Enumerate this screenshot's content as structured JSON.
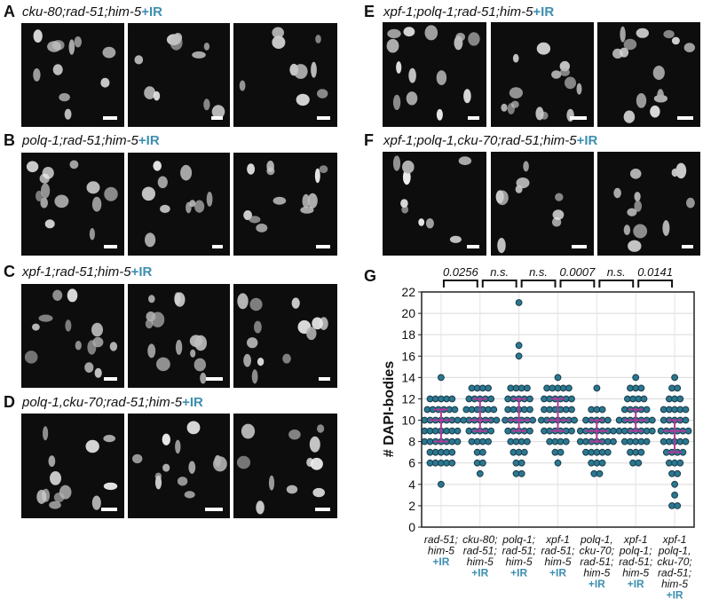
{
  "ir_label": "+IR",
  "panels": [
    {
      "letter": "A",
      "genotype": "cku-80;rad-51;him-5"
    },
    {
      "letter": "B",
      "genotype": "polq-1;rad-51;him-5"
    },
    {
      "letter": "C",
      "genotype": "xpf-1;rad-51;him-5"
    },
    {
      "letter": "D",
      "genotype": "polq-1,cku-70;rad-51;him-5"
    },
    {
      "letter": "E",
      "genotype": "xpf-1;polq-1;rad-51;him-5"
    },
    {
      "letter": "F",
      "genotype": "xpf-1;polq-1,cku-70;rad-51;him-5"
    }
  ],
  "colors": {
    "dot_fill": "#2a7890",
    "dot_stroke": "#1b3a4a",
    "errorbar": "#b0389a",
    "ir_text": "#3d8fb0",
    "micro_bg": "#0d0d0d"
  },
  "chart_data": {
    "panel_letter": "G",
    "type": "scatter",
    "ylabel": "# DAPI-bodies",
    "ylim": [
      0,
      22
    ],
    "yticks": [
      0,
      2,
      4,
      6,
      8,
      10,
      12,
      14,
      16,
      18,
      20,
      22
    ],
    "grid": true,
    "categories": [
      [
        "rad-51;",
        "him-5",
        "+IR"
      ],
      [
        "cku-80;",
        "rad-51;",
        "him-5",
        "+IR"
      ],
      [
        "polq-1;",
        "rad-51;",
        "him-5",
        "+IR"
      ],
      [
        "xpf-1",
        "rad-51;",
        "him-5",
        "+IR"
      ],
      [
        "polq-1,",
        "cku-70;",
        "rad-51;",
        "him-5",
        "+IR"
      ],
      [
        "xpf-1",
        "polq-1;",
        "rad-51;",
        "him-5",
        "+IR"
      ],
      [
        "xpf-1",
        "polq-1,",
        "cku-70;",
        "rad-51;",
        "him-5",
        "+IR"
      ]
    ],
    "series": [
      {
        "points": [
          [
            14,
            1
          ],
          [
            12,
            5
          ],
          [
            11,
            6
          ],
          [
            10,
            7
          ],
          [
            9,
            7
          ],
          [
            8,
            7
          ],
          [
            7,
            5
          ],
          [
            6,
            5
          ],
          [
            4,
            1
          ]
        ],
        "median": 10,
        "q1": 8,
        "q3": 11
      },
      {
        "points": [
          [
            13,
            4
          ],
          [
            12,
            5
          ],
          [
            11,
            6
          ],
          [
            10,
            7
          ],
          [
            9,
            5
          ],
          [
            8,
            4
          ],
          [
            7,
            2
          ],
          [
            6,
            2
          ],
          [
            5,
            1
          ]
        ],
        "median": 10,
        "q1": 9,
        "q3": 12
      },
      {
        "points": [
          [
            21,
            1
          ],
          [
            17,
            1
          ],
          [
            16,
            1
          ],
          [
            13,
            4
          ],
          [
            12,
            5
          ],
          [
            11,
            5
          ],
          [
            10,
            6
          ],
          [
            9,
            5
          ],
          [
            8,
            4
          ],
          [
            7,
            3
          ],
          [
            6,
            2
          ],
          [
            5,
            2
          ]
        ],
        "median": 10,
        "q1": 9,
        "q3": 12
      },
      {
        "points": [
          [
            14,
            1
          ],
          [
            13,
            5
          ],
          [
            12,
            6
          ],
          [
            11,
            6
          ],
          [
            10,
            7
          ],
          [
            9,
            6
          ],
          [
            8,
            4
          ],
          [
            7,
            2
          ],
          [
            6,
            1
          ]
        ],
        "median": 10,
        "q1": 9,
        "q3": 12
      },
      {
        "points": [
          [
            13,
            1
          ],
          [
            11,
            3
          ],
          [
            10,
            5
          ],
          [
            9,
            7
          ],
          [
            8,
            7
          ],
          [
            7,
            5
          ],
          [
            6,
            3
          ],
          [
            5,
            2
          ]
        ],
        "median": 9,
        "q1": 8,
        "q3": 10
      },
      {
        "points": [
          [
            14,
            1
          ],
          [
            13,
            3
          ],
          [
            12,
            4
          ],
          [
            11,
            5
          ],
          [
            10,
            7
          ],
          [
            9,
            7
          ],
          [
            8,
            5
          ],
          [
            7,
            3
          ],
          [
            6,
            2
          ]
        ],
        "median": 10,
        "q1": 9,
        "q3": 11
      },
      {
        "points": [
          [
            14,
            1
          ],
          [
            13,
            2
          ],
          [
            12,
            3
          ],
          [
            11,
            5
          ],
          [
            10,
            5
          ],
          [
            9,
            6
          ],
          [
            8,
            5
          ],
          [
            7,
            4
          ],
          [
            6,
            3
          ],
          [
            5,
            2
          ],
          [
            4,
            1
          ],
          [
            3,
            1
          ],
          [
            2,
            2
          ]
        ],
        "median": 9,
        "q1": 7,
        "q3": 10
      }
    ],
    "comparisons": [
      {
        "from": 0,
        "to": 1,
        "label": "0.0256"
      },
      {
        "from": 1,
        "to": 2,
        "label": "n.s."
      },
      {
        "from": 2,
        "to": 3,
        "label": "n.s."
      },
      {
        "from": 3,
        "to": 4,
        "label": "0.0007"
      },
      {
        "from": 4,
        "to": 5,
        "label": "n.s."
      },
      {
        "from": 5,
        "to": 6,
        "label": "0.0141"
      }
    ]
  }
}
